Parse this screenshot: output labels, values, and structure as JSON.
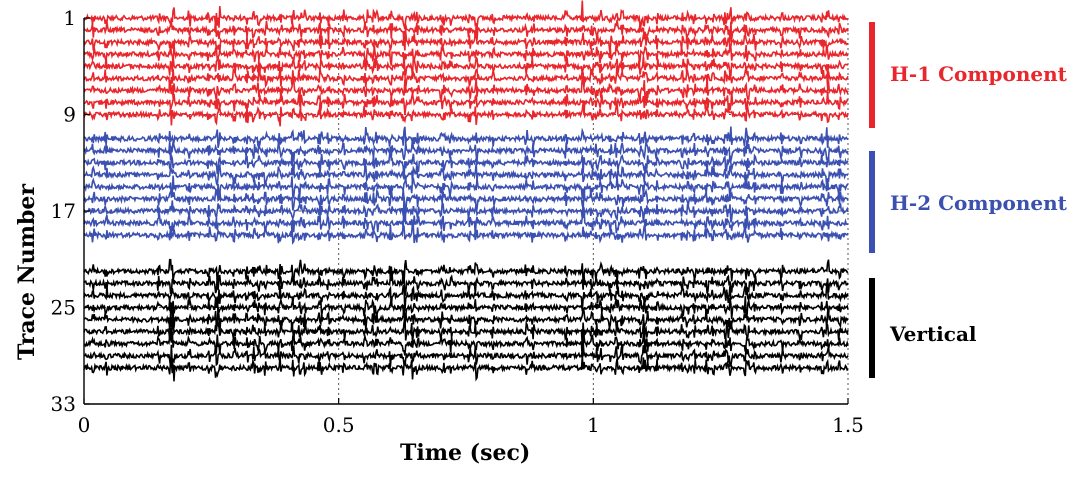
{
  "chart_data": {
    "type": "line",
    "xlabel": "Time (sec)",
    "ylabel": "Trace Number",
    "xlim": [
      0,
      1.5
    ],
    "ylim": [
      33,
      1
    ],
    "xticks": [
      "0",
      "0.5",
      "1",
      "1.5"
    ],
    "xtick_values": [
      0,
      0.5,
      1,
      1.5
    ],
    "yticks": [
      "1",
      "9",
      "17",
      "25",
      "33"
    ],
    "ytick_values": [
      1,
      9,
      17,
      25,
      33
    ],
    "grid": true,
    "series": [
      {
        "name": "H-1 Component",
        "traces": [
          1,
          2,
          3,
          4,
          5,
          6,
          7,
          8,
          9
        ],
        "color": "#e8262b"
      },
      {
        "name": "H-2 Component",
        "traces": [
          11,
          12,
          13,
          14,
          15,
          16,
          17,
          18,
          19
        ],
        "color": "#3b50b0"
      },
      {
        "name": "Vertical",
        "traces": [
          22,
          23,
          24,
          25,
          26,
          27,
          28,
          29,
          30
        ],
        "color": "#000000"
      }
    ]
  }
}
